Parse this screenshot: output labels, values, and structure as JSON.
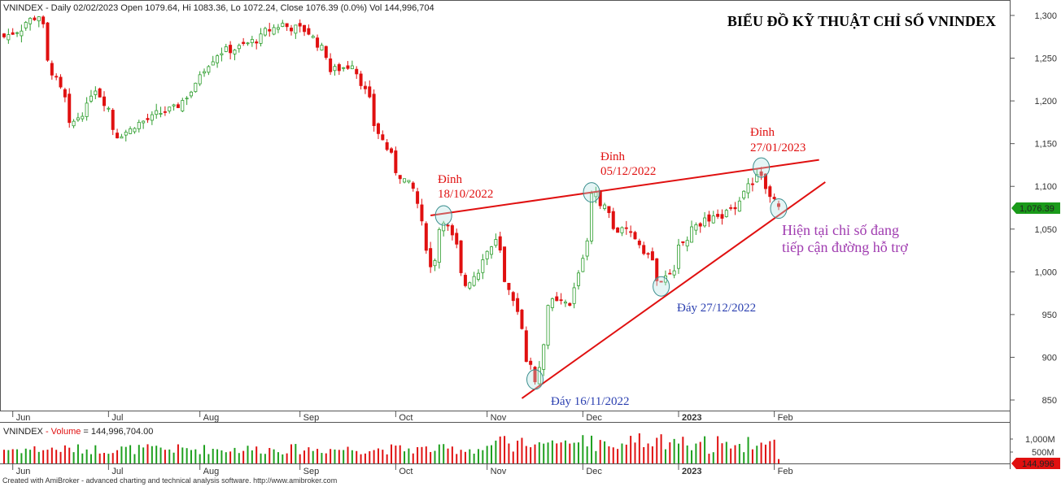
{
  "header": {
    "symbol": "VNINDEX",
    "info": " - Daily 02/02/2023 Open 1079.64, Hi 1083.36, Lo 1072.24, Close 1076.39 (0.0%) Vol 144,996,704"
  },
  "title": "BIỂU ĐỒ KỸ THUẬT CHỈ SỐ VNINDEX",
  "volume_panel": {
    "symbol": "VNINDEX",
    "label": " - Volume",
    "value": " = 144,996,704.00",
    "tick_labels": [
      "1,000M",
      "500M"
    ],
    "last_value": "144,996"
  },
  "last_price_label": "1,076.39",
  "footer": "Created with AmiBroker - advanced charting and technical analysis software. http://www.amibroker.com",
  "annotations": {
    "peak1_l1": "Đỉnh",
    "peak1_l2": "18/10/2022",
    "peak2_l1": "Đỉnh",
    "peak2_l2": "05/12/2022",
    "peak3_l1": "Đỉnh",
    "peak3_l2": "27/01/2023",
    "trough1": "Đáy 16/11/2022",
    "trough2": "Đáy 27/12/2022",
    "note_l1": "Hiện tại chỉ số đang",
    "note_l2": "tiếp cận đường hỗ trợ"
  },
  "colors": {
    "up": "#2e9e2e",
    "down": "#e01010",
    "trendline": "#e01010",
    "vol_up": "#1fa01f",
    "vol_down": "#e01010",
    "label_red": "#e01010",
    "label_blue": "#2a3fb0",
    "label_purple": "#a03cb0",
    "price_tag": "#1a9a1a",
    "vol_tag": "#e01010"
  },
  "chart_data": {
    "type": "candlestick",
    "title": "BIỂU ĐỒ KỸ THUẬT CHỈ SỐ VNINDEX",
    "x_tick_labels": [
      "Jun",
      "Jul",
      "Aug",
      "Sep",
      "Oct",
      "Nov",
      "Dec",
      "2023",
      "Feb"
    ],
    "y_tick_labels": [
      "1,300",
      "1,250",
      "1,200",
      "1,150",
      "1,100",
      "1,050",
      "1,000",
      "950",
      "900",
      "850"
    ],
    "ylim": [
      830,
      1310
    ],
    "grid": false,
    "waypoints": [
      {
        "date": "2022-05-30",
        "close": 1275
      },
      {
        "date": "2022-06-09",
        "close": 1300
      },
      {
        "date": "2022-06-13",
        "close": 1245
      },
      {
        "date": "2022-06-20",
        "close": 1170
      },
      {
        "date": "2022-06-28",
        "close": 1215
      },
      {
        "date": "2022-07-05",
        "close": 1160
      },
      {
        "date": "2022-07-15",
        "close": 1180
      },
      {
        "date": "2022-07-25",
        "close": 1195
      },
      {
        "date": "2022-08-05",
        "close": 1255
      },
      {
        "date": "2022-08-15",
        "close": 1265
      },
      {
        "date": "2022-08-26",
        "close": 1290
      },
      {
        "date": "2022-09-05",
        "close": 1280
      },
      {
        "date": "2022-09-12",
        "close": 1235
      },
      {
        "date": "2022-09-19",
        "close": 1245
      },
      {
        "date": "2022-09-23",
        "close": 1200
      },
      {
        "date": "2022-09-30",
        "close": 1135
      },
      {
        "date": "2022-10-10",
        "close": 1080
      },
      {
        "date": "2022-10-13",
        "close": 1005
      },
      {
        "date": "2022-10-18",
        "close": 1062
      },
      {
        "date": "2022-10-25",
        "close": 985
      },
      {
        "date": "2022-11-03",
        "close": 1035
      },
      {
        "date": "2022-11-10",
        "close": 950
      },
      {
        "date": "2022-11-16",
        "close": 875
      },
      {
        "date": "2022-11-21",
        "close": 965
      },
      {
        "date": "2022-11-28",
        "close": 960
      },
      {
        "date": "2022-12-05",
        "close": 1095
      },
      {
        "date": "2022-12-12",
        "close": 1050
      },
      {
        "date": "2022-12-19",
        "close": 1040
      },
      {
        "date": "2022-12-27",
        "close": 985
      },
      {
        "date": "2023-01-06",
        "close": 1055
      },
      {
        "date": "2023-01-16",
        "close": 1065
      },
      {
        "date": "2023-01-27",
        "close": 1115
      },
      {
        "date": "2023-02-02",
        "close": 1076.39
      }
    ],
    "last_bar": {
      "date": "2023-02-02",
      "open": 1079.64,
      "high": 1083.36,
      "low": 1072.24,
      "close": 1076.39,
      "volume": 144996704
    },
    "resistance_line": [
      {
        "date": "2022-10-13",
        "price": 1066
      },
      {
        "date": "2023-02-15",
        "price": 1131
      }
    ],
    "support_line": [
      {
        "date": "2022-11-11",
        "price": 852
      },
      {
        "date": "2023-02-17",
        "price": 1105
      }
    ],
    "highlighted_points": [
      {
        "date": "2022-10-18",
        "price": 1066
      },
      {
        "date": "2022-12-05",
        "price": 1093
      },
      {
        "date": "2023-01-27",
        "price": 1122
      },
      {
        "date": "2022-11-16",
        "price": 874
      },
      {
        "date": "2022-12-27",
        "price": 983
      },
      {
        "date": "2023-02-02",
        "price": 1074
      }
    ],
    "volume_ylim": [
      0,
      1300000000
    ]
  }
}
